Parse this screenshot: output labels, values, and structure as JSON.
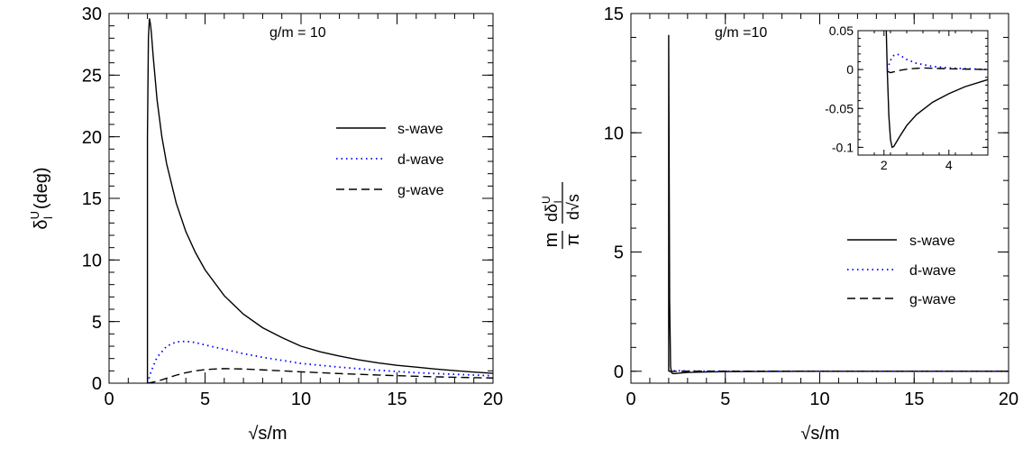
{
  "chart_data": [
    {
      "type": "line",
      "annotation": "g/m = 10",
      "xlabel": "√s/m",
      "ylabel": "δ_l^U (deg)",
      "ylabel_parts": {
        "main": "δ",
        "sub": "l",
        "sup": "U",
        "unit": "(deg)"
      },
      "xlim": [
        0,
        20
      ],
      "ylim": [
        0,
        30
      ],
      "x_ticks": [
        0,
        5,
        10,
        15,
        20
      ],
      "y_ticks": [
        0,
        5,
        10,
        15,
        20,
        25,
        30
      ],
      "grid": false,
      "legend_position": "right",
      "series": [
        {
          "name": "s-wave",
          "style": "solid",
          "color": "#000000",
          "x": [
            2.0,
            2.0,
            2.05,
            2.1,
            2.15,
            2.2,
            2.3,
            2.5,
            2.75,
            3.0,
            3.5,
            4.0,
            4.5,
            5.0,
            6.0,
            7.0,
            8.0,
            9.0,
            10.0,
            11.0,
            12.0,
            13.0,
            14.0,
            15.0,
            16.0,
            17.0,
            18.0,
            19.0,
            20.0
          ],
          "y": [
            0,
            20.0,
            28.0,
            29.6,
            29.2,
            28.5,
            26.5,
            23.0,
            20.0,
            17.8,
            14.6,
            12.3,
            10.6,
            9.2,
            7.1,
            5.6,
            4.5,
            3.7,
            3.0,
            2.55,
            2.2,
            1.9,
            1.65,
            1.45,
            1.3,
            1.15,
            1.02,
            0.9,
            0.8
          ]
        },
        {
          "name": "d-wave",
          "style": "dotted",
          "color": "#0000ff",
          "x": [
            2.0,
            2.2,
            2.5,
            3.0,
            3.5,
            4.0,
            4.5,
            5.0,
            6.0,
            7.0,
            8.0,
            9.0,
            10.0,
            12.0,
            14.0,
            16.0,
            18.0,
            20.0
          ],
          "y": [
            0,
            1.0,
            2.1,
            3.0,
            3.35,
            3.4,
            3.3,
            3.1,
            2.75,
            2.4,
            2.1,
            1.85,
            1.6,
            1.3,
            1.05,
            0.85,
            0.72,
            0.6
          ]
        },
        {
          "name": "g-wave",
          "style": "dashed",
          "color": "#000000",
          "x": [
            2.0,
            2.5,
            3.0,
            3.5,
            4.0,
            4.5,
            5.0,
            5.5,
            6.0,
            7.0,
            8.0,
            9.0,
            10.0,
            12.0,
            14.0,
            16.0,
            18.0,
            20.0
          ],
          "y": [
            0,
            0.15,
            0.4,
            0.65,
            0.85,
            1.0,
            1.1,
            1.15,
            1.18,
            1.15,
            1.08,
            1.0,
            0.92,
            0.78,
            0.66,
            0.56,
            0.48,
            0.42
          ]
        }
      ]
    },
    {
      "type": "line",
      "annotation": "g/m =10",
      "xlabel": "√s/m",
      "ylabel_parts": {
        "prefix_num": "m",
        "prefix_den": "π",
        "num": "dδ",
        "num_sub": "l",
        "num_sup": "U",
        "den": "d√s"
      },
      "xlim": [
        0,
        20
      ],
      "ylim": [
        -0.5,
        15
      ],
      "x_ticks": [
        0,
        5,
        10,
        15,
        20
      ],
      "y_ticks": [
        0,
        5,
        10,
        15
      ],
      "grid": false,
      "legend_position": "bottom-right",
      "series": [
        {
          "name": "s-wave",
          "style": "solid",
          "color": "#000000",
          "x": [
            2.0,
            2.0,
            2.05,
            2.1,
            2.15,
            2.2,
            2.3,
            2.5,
            3.0,
            4.0,
            5.0,
            10.0,
            20.0
          ],
          "y": [
            0,
            14.1,
            3.0,
            0.2,
            -0.05,
            -0.09,
            -0.1,
            -0.08,
            -0.05,
            -0.03,
            -0.015,
            0.0,
            0.0
          ]
        },
        {
          "name": "d-wave",
          "style": "dotted",
          "color": "#0000ff",
          "x": [
            2.0,
            2.2,
            2.4,
            2.6,
            3.0,
            4.0,
            5.0,
            10.0,
            20.0
          ],
          "y": [
            0,
            0.015,
            0.02,
            0.018,
            0.012,
            0.005,
            0.002,
            0.0,
            0.0
          ]
        },
        {
          "name": "g-wave",
          "style": "dashed",
          "color": "#000000",
          "x": [
            2.0,
            2.2,
            2.5,
            3.0,
            3.5,
            4.0,
            5.0,
            10.0,
            20.0
          ],
          "y": [
            0,
            -0.005,
            0.0,
            0.003,
            0.004,
            0.004,
            0.003,
            0.0,
            0.0
          ]
        }
      ],
      "inset": {
        "xlim": [
          1.2,
          5.2
        ],
        "ylim": [
          -0.11,
          0.05
        ],
        "x_ticks": [
          2,
          4
        ],
        "y_ticks": [
          0.05,
          0,
          -0.05,
          -0.1
        ],
        "y_tick_labels": [
          "0.05",
          "0",
          "-0.05",
          "-0.1"
        ],
        "series": [
          {
            "name": "s-wave",
            "style": "solid",
            "color": "#000000",
            "x": [
              2.07,
              2.1,
              2.15,
              2.2,
              2.25,
              2.3,
              2.4,
              2.5,
              2.7,
              3.0,
              3.5,
              4.0,
              4.5,
              5.2
            ],
            "y": [
              0.05,
              0.0,
              -0.06,
              -0.09,
              -0.1,
              -0.099,
              -0.092,
              -0.085,
              -0.072,
              -0.058,
              -0.042,
              -0.031,
              -0.022,
              -0.013
            ]
          },
          {
            "name": "d-wave",
            "style": "dotted",
            "color": "#0000ff",
            "x": [
              2.1,
              2.2,
              2.3,
              2.4,
              2.5,
              2.7,
              3.0,
              3.5,
              4.0,
              5.2
            ],
            "y": [
              0.0,
              0.012,
              0.018,
              0.02,
              0.018,
              0.013,
              0.008,
              0.004,
              0.002,
              0.0
            ]
          },
          {
            "name": "g-wave",
            "style": "dashed",
            "color": "#000000",
            "x": [
              2.1,
              2.2,
              2.3,
              2.5,
              2.8,
              3.2,
              4.0,
              5.2
            ],
            "y": [
              -0.002,
              -0.004,
              -0.003,
              -0.001,
              0.001,
              0.002,
              0.001,
              0.0
            ]
          }
        ]
      }
    }
  ]
}
